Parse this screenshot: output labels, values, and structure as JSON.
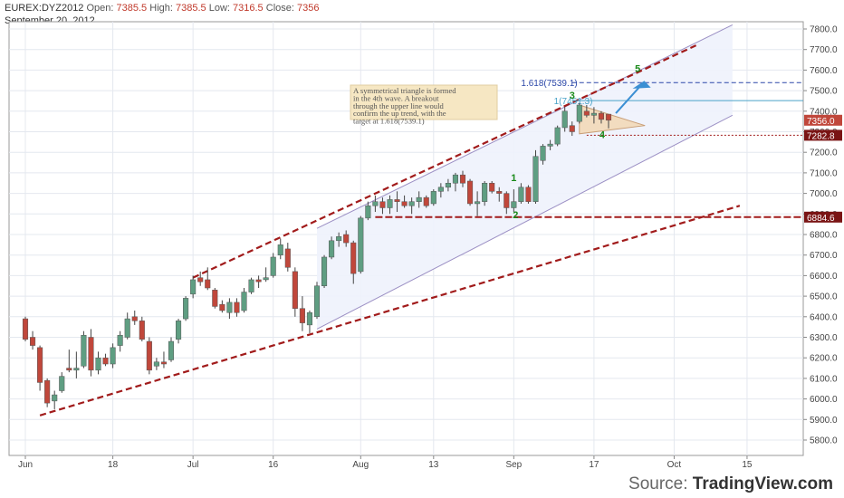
{
  "header": {
    "symbol": "EUREX:DYZ2012",
    "open_label": "Open:",
    "open": "7385.5",
    "high_label": "High:",
    "high": "7385.5",
    "low_label": "Low:",
    "low": "7316.5",
    "close_label": "Close:",
    "close": "7356",
    "date": "September 20, 2012"
  },
  "source": {
    "prefix": "Source:",
    "brand": "TradingView.com"
  },
  "colors": {
    "up": "#5f9e82",
    "down": "#c0473b",
    "trendline": "#a11b1b",
    "channel": "#9b8fc4",
    "channel_fill": "#eef2fc",
    "fib_blue": "#2b47a8",
    "fib_cyan": "#4aa3c8",
    "wave_label": "#1a8a1a",
    "triangle_fill": "#f3d9b5",
    "arrow": "#3b8fd3",
    "note_bg": "#f6e7c3"
  },
  "chart_data": {
    "type": "candlestick",
    "ylim": [
      5700,
      7850
    ],
    "y_ticks": [
      "5800.0",
      "5900.0",
      "6000.0",
      "6100.0",
      "6200.0",
      "6300.0",
      "6400.0",
      "6500.0",
      "6600.0",
      "6700.0",
      "6800.0",
      "6900.0",
      "7000.0",
      "7100.0",
      "7200.0",
      "7300.0",
      "7400.0",
      "7500.0",
      "7600.0",
      "7700.0",
      "7800.0"
    ],
    "x_ticks": [
      {
        "label": "Jun",
        "i": 0
      },
      {
        "label": "18",
        "i": 12
      },
      {
        "label": "Jul",
        "i": 23
      },
      {
        "label": "16",
        "i": 34
      },
      {
        "label": "Aug",
        "i": 46
      },
      {
        "label": "13",
        "i": 56
      },
      {
        "label": "Sep",
        "i": 67
      },
      {
        "label": "17",
        "i": 78
      },
      {
        "label": "Oct",
        "i": 89
      },
      {
        "label": "15",
        "i": 99
      }
    ],
    "candles": [
      {
        "o": 6390,
        "h": 6400,
        "l": 6280,
        "c": 6290
      },
      {
        "o": 6300,
        "h": 6330,
        "l": 6240,
        "c": 6260
      },
      {
        "o": 6250,
        "h": 6260,
        "l": 6040,
        "c": 6080
      },
      {
        "o": 6090,
        "h": 6100,
        "l": 5960,
        "c": 5980
      },
      {
        "o": 5990,
        "h": 6040,
        "l": 5950,
        "c": 6020
      },
      {
        "o": 6040,
        "h": 6130,
        "l": 6030,
        "c": 6110
      },
      {
        "o": 6150,
        "h": 6240,
        "l": 6130,
        "c": 6140
      },
      {
        "o": 6140,
        "h": 6230,
        "l": 6100,
        "c": 6150
      },
      {
        "o": 6160,
        "h": 6330,
        "l": 6150,
        "c": 6310
      },
      {
        "o": 6300,
        "h": 6340,
        "l": 6110,
        "c": 6140
      },
      {
        "o": 6140,
        "h": 6230,
        "l": 6120,
        "c": 6200
      },
      {
        "o": 6200,
        "h": 6220,
        "l": 6160,
        "c": 6170
      },
      {
        "o": 6170,
        "h": 6270,
        "l": 6150,
        "c": 6250
      },
      {
        "o": 6260,
        "h": 6330,
        "l": 6230,
        "c": 6310
      },
      {
        "o": 6300,
        "h": 6420,
        "l": 6290,
        "c": 6390
      },
      {
        "o": 6400,
        "h": 6430,
        "l": 6360,
        "c": 6380
      },
      {
        "o": 6380,
        "h": 6400,
        "l": 6280,
        "c": 6290
      },
      {
        "o": 6280,
        "h": 6300,
        "l": 6120,
        "c": 6140
      },
      {
        "o": 6160,
        "h": 6200,
        "l": 6140,
        "c": 6180
      },
      {
        "o": 6180,
        "h": 6230,
        "l": 6150,
        "c": 6170
      },
      {
        "o": 6190,
        "h": 6300,
        "l": 6180,
        "c": 6280
      },
      {
        "o": 6290,
        "h": 6390,
        "l": 6270,
        "c": 6380
      },
      {
        "o": 6390,
        "h": 6500,
        "l": 6380,
        "c": 6490
      },
      {
        "o": 6510,
        "h": 6600,
        "l": 6490,
        "c": 6580
      },
      {
        "o": 6590,
        "h": 6620,
        "l": 6550,
        "c": 6570
      },
      {
        "o": 6580,
        "h": 6640,
        "l": 6530,
        "c": 6540
      },
      {
        "o": 6530,
        "h": 6540,
        "l": 6440,
        "c": 6450
      },
      {
        "o": 6460,
        "h": 6480,
        "l": 6420,
        "c": 6430
      },
      {
        "o": 6420,
        "h": 6490,
        "l": 6390,
        "c": 6470
      },
      {
        "o": 6470,
        "h": 6490,
        "l": 6400,
        "c": 6420
      },
      {
        "o": 6430,
        "h": 6540,
        "l": 6420,
        "c": 6520
      },
      {
        "o": 6520,
        "h": 6590,
        "l": 6510,
        "c": 6580
      },
      {
        "o": 6580,
        "h": 6600,
        "l": 6540,
        "c": 6570
      },
      {
        "o": 6580,
        "h": 6640,
        "l": 6570,
        "c": 6590
      },
      {
        "o": 6600,
        "h": 6710,
        "l": 6590,
        "c": 6690
      },
      {
        "o": 6700,
        "h": 6780,
        "l": 6680,
        "c": 6750
      },
      {
        "o": 6730,
        "h": 6760,
        "l": 6620,
        "c": 6640
      },
      {
        "o": 6620,
        "h": 6640,
        "l": 6400,
        "c": 6440
      },
      {
        "o": 6440,
        "h": 6500,
        "l": 6330,
        "c": 6370
      },
      {
        "o": 6360,
        "h": 6430,
        "l": 6320,
        "c": 6420
      },
      {
        "o": 6400,
        "h": 6570,
        "l": 6390,
        "c": 6550
      },
      {
        "o": 6550,
        "h": 6700,
        "l": 6540,
        "c": 6690
      },
      {
        "o": 6690,
        "h": 6790,
        "l": 6680,
        "c": 6770
      },
      {
        "o": 6770,
        "h": 6810,
        "l": 6740,
        "c": 6790
      },
      {
        "o": 6800,
        "h": 6820,
        "l": 6740,
        "c": 6760
      },
      {
        "o": 6760,
        "h": 6770,
        "l": 6560,
        "c": 6610
      },
      {
        "o": 6620,
        "h": 6890,
        "l": 6610,
        "c": 6880
      },
      {
        "o": 6880,
        "h": 6960,
        "l": 6870,
        "c": 6940
      },
      {
        "o": 6940,
        "h": 6990,
        "l": 6910,
        "c": 6960
      },
      {
        "o": 6960,
        "h": 6980,
        "l": 6900,
        "c": 6930
      },
      {
        "o": 6930,
        "h": 6990,
        "l": 6900,
        "c": 6970
      },
      {
        "o": 6970,
        "h": 7010,
        "l": 6910,
        "c": 6960
      },
      {
        "o": 6960,
        "h": 6990,
        "l": 6930,
        "c": 6940
      },
      {
        "o": 6940,
        "h": 6980,
        "l": 6900,
        "c": 6960
      },
      {
        "o": 6960,
        "h": 7010,
        "l": 6930,
        "c": 6980
      },
      {
        "o": 6980,
        "h": 6990,
        "l": 6930,
        "c": 6940
      },
      {
        "o": 6950,
        "h": 7020,
        "l": 6940,
        "c": 7010
      },
      {
        "o": 7010,
        "h": 7050,
        "l": 6980,
        "c": 7030
      },
      {
        "o": 7030,
        "h": 7070,
        "l": 7010,
        "c": 7050
      },
      {
        "o": 7050,
        "h": 7100,
        "l": 7010,
        "c": 7090
      },
      {
        "o": 7090,
        "h": 7110,
        "l": 7030,
        "c": 7050
      },
      {
        "o": 7060,
        "h": 7070,
        "l": 6940,
        "c": 6950
      },
      {
        "o": 6950,
        "h": 7010,
        "l": 6890,
        "c": 6960
      },
      {
        "o": 6960,
        "h": 7060,
        "l": 6940,
        "c": 7050
      },
      {
        "o": 7050,
        "h": 7060,
        "l": 7000,
        "c": 7010
      },
      {
        "o": 7010,
        "h": 7030,
        "l": 6960,
        "c": 7000
      },
      {
        "o": 7000,
        "h": 7010,
        "l": 6900,
        "c": 6930
      },
      {
        "o": 6930,
        "h": 7020,
        "l": 6910,
        "c": 6960
      },
      {
        "o": 6960,
        "h": 7050,
        "l": 6950,
        "c": 7030
      },
      {
        "o": 7030,
        "h": 7040,
        "l": 6950,
        "c": 6960
      },
      {
        "o": 6960,
        "h": 7210,
        "l": 6950,
        "c": 7180
      },
      {
        "o": 7160,
        "h": 7240,
        "l": 7140,
        "c": 7230
      },
      {
        "o": 7230,
        "h": 7260,
        "l": 7210,
        "c": 7240
      },
      {
        "o": 7240,
        "h": 7330,
        "l": 7230,
        "c": 7320
      },
      {
        "o": 7320,
        "h": 7420,
        "l": 7300,
        "c": 7400
      },
      {
        "o": 7330,
        "h": 7350,
        "l": 7280,
        "c": 7300
      },
      {
        "o": 7350,
        "h": 7440,
        "l": 7340,
        "c": 7430
      },
      {
        "o": 7400,
        "h": 7430,
        "l": 7370,
        "c": 7380
      },
      {
        "o": 7380,
        "h": 7420,
        "l": 7340,
        "c": 7390
      },
      {
        "o": 7390,
        "h": 7400,
        "l": 7340,
        "c": 7360
      },
      {
        "o": 7385.5,
        "h": 7385.5,
        "l": 7316.5,
        "c": 7356
      }
    ],
    "last_price_label": "7356.0",
    "levels": [
      {
        "label": "7282.8",
        "value": 7282.8,
        "style": "dotted"
      },
      {
        "label": "6884.6",
        "value": 6884.6,
        "style": "dashed"
      }
    ],
    "fib": [
      {
        "label": "1.618(7539.1)",
        "value": 7539.1
      },
      {
        "label": "1(7451.3)",
        "value": 7451.3
      }
    ],
    "waves": [
      {
        "label": "1",
        "i": 67,
        "value": 7060
      },
      {
        "label": "2",
        "i": 67,
        "value": 6880
      },
      {
        "label": "3",
        "i": 75,
        "value": 7460
      },
      {
        "label": "4",
        "i": 79,
        "value": 7270
      },
      {
        "label": "5",
        "i": 84,
        "value": 7590
      }
    ],
    "annotation": "A symmetrical triangle is formed in the 4th wave. A breakout through the upper line would confirm the up trend, with the target at 1.618(7539.1)"
  }
}
